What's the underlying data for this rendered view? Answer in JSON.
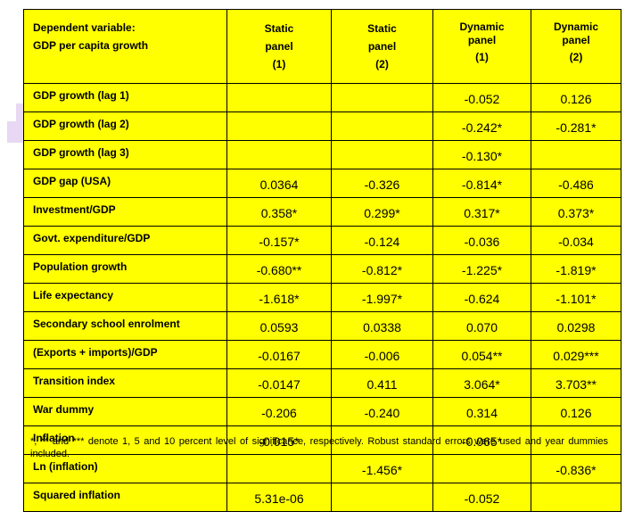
{
  "header": {
    "label_line1": "Dependent variable:",
    "label_line2": "GDP per capita growth",
    "columns": [
      {
        "line1": "Static",
        "line2": "panel",
        "num": "(1)"
      },
      {
        "line1": "Static",
        "line2": "panel",
        "num": "(2)"
      },
      {
        "line1": "Dynamic",
        "line2": "panel",
        "num": "(1)"
      },
      {
        "line1": "Dynamic",
        "line2": "panel",
        "num": "(2)"
      }
    ]
  },
  "rows": [
    {
      "label": "GDP growth  (lag 1)",
      "values": [
        "",
        "",
        "-0.052",
        "0.126"
      ]
    },
    {
      "label": "GDP growth  (lag 2)",
      "values": [
        "",
        "",
        "-0.242*",
        "-0.281*"
      ]
    },
    {
      "label": "GDP growth  (lag 3)",
      "values": [
        "",
        "",
        "-0.130*",
        ""
      ]
    },
    {
      "label": "GDP gap (USA)",
      "values": [
        "0.0364",
        "-0.326",
        "-0.814*",
        "-0.486"
      ]
    },
    {
      "label": "Investment/GDP",
      "values": [
        "0.358*",
        "0.299*",
        "0.317*",
        "0.373*"
      ]
    },
    {
      "label": "Govt. expenditure/GDP",
      "values": [
        "-0.157*",
        "-0.124",
        "-0.036",
        "-0.034"
      ]
    },
    {
      "label": "Population growth",
      "values": [
        "-0.680**",
        "-0.812*",
        "-1.225*",
        "-1.819*"
      ]
    },
    {
      "label": "Life expectancy",
      "values": [
        "-1.618*",
        "-1.997*",
        "-0.624",
        "-1.101*"
      ]
    },
    {
      "label": "Secondary school enrolment",
      "values": [
        "0.0593",
        "0.0338",
        "0.070",
        "0.0298"
      ]
    },
    {
      "label": "(Exports + imports)/GDP",
      "values": [
        "-0.0167",
        "-0.006",
        "0.054**",
        "0.029***"
      ]
    },
    {
      "label": "Transition index",
      "values": [
        "-0.0147",
        "0.411",
        "3.064*",
        "3.703**"
      ]
    },
    {
      "label": "War dummy",
      "values": [
        "-0.206",
        "-0.240",
        "0.314",
        "0.126"
      ]
    },
    {
      "label": "Inflation",
      "values": [
        "-0.015*",
        "",
        "-0.065*",
        ""
      ]
    },
    {
      "label": "Ln (inflation)",
      "values": [
        "",
        "-1.456*",
        "",
        "-0.836*"
      ]
    },
    {
      "label": "Squared inflation",
      "values": [
        "5.31e-06",
        "",
        "-0.052",
        ""
      ]
    }
  ],
  "footnote": "*, ** and *** denote 1, 5 and 10 percent level of significance, respectively. Robust standard errors were used and year dummies included.",
  "colors": {
    "table_background": "#ffff00",
    "border": "#000000",
    "decoration": "#e8d8f4"
  }
}
